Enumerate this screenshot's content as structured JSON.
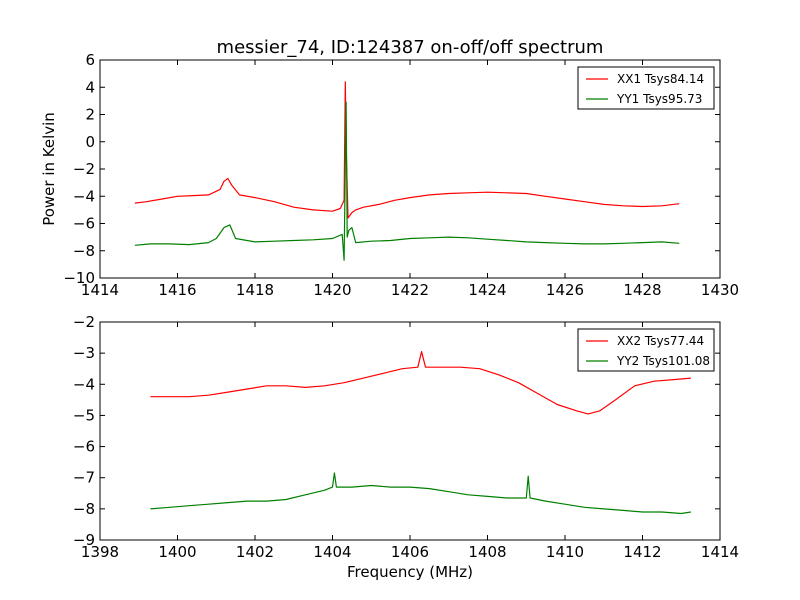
{
  "figure": {
    "title": "messier_74, ID:124387 on-off/off spectrum",
    "ylabel": "Power in Kelvin",
    "xlabel": "Frequency (MHz)"
  },
  "chart_data": [
    {
      "type": "line",
      "title": "messier_74, ID:124387 on-off/off spectrum",
      "xlabel": "",
      "ylabel": "Power in Kelvin",
      "xlim": [
        1414,
        1430
      ],
      "ylim": [
        -10,
        6
      ],
      "xticks": [
        1414,
        1416,
        1418,
        1420,
        1422,
        1424,
        1426,
        1428,
        1430
      ],
      "yticks": [
        6,
        4,
        2,
        0,
        -2,
        -4,
        -6,
        -8,
        -10
      ],
      "grid": false,
      "legend": "top-right",
      "series": [
        {
          "name": "XX1 Tsys84.14",
          "color": "#ff0000",
          "x": [
            1414.9,
            1415.2,
            1415.6,
            1416.0,
            1416.4,
            1416.8,
            1417.1,
            1417.2,
            1417.3,
            1417.4,
            1417.6,
            1418.0,
            1418.5,
            1419.0,
            1419.5,
            1420.0,
            1420.2,
            1420.3,
            1420.33,
            1420.36,
            1420.4,
            1420.5,
            1420.6,
            1420.8,
            1421.2,
            1421.6,
            1422.0,
            1422.5,
            1423.0,
            1423.5,
            1424.0,
            1424.5,
            1425.0,
            1425.5,
            1426.0,
            1426.5,
            1427.0,
            1427.5,
            1428.0,
            1428.5,
            1428.95
          ],
          "y": [
            -4.5,
            -4.4,
            -4.2,
            -4.0,
            -3.95,
            -3.9,
            -3.5,
            -2.9,
            -2.7,
            -3.2,
            -3.9,
            -4.1,
            -4.4,
            -4.8,
            -5.0,
            -5.1,
            -4.9,
            -4.3,
            4.4,
            -1.0,
            -5.6,
            -5.2,
            -5.0,
            -4.8,
            -4.6,
            -4.3,
            -4.1,
            -3.9,
            -3.8,
            -3.75,
            -3.7,
            -3.75,
            -3.8,
            -4.0,
            -4.2,
            -4.4,
            -4.6,
            -4.7,
            -4.75,
            -4.7,
            -4.55
          ]
        },
        {
          "name": "YY1 Tsys95.73",
          "color": "#008000",
          "x": [
            1414.9,
            1415.3,
            1415.8,
            1416.3,
            1416.8,
            1417.0,
            1417.2,
            1417.35,
            1417.5,
            1418.0,
            1418.5,
            1419.0,
            1419.5,
            1420.0,
            1420.25,
            1420.3,
            1420.35,
            1420.38,
            1420.42,
            1420.5,
            1420.6,
            1421.0,
            1421.5,
            1422.0,
            1422.5,
            1423.0,
            1423.5,
            1424.0,
            1424.5,
            1425.0,
            1425.5,
            1426.0,
            1426.5,
            1427.0,
            1427.5,
            1428.0,
            1428.5,
            1428.95
          ],
          "y": [
            -7.6,
            -7.5,
            -7.5,
            -7.55,
            -7.4,
            -7.1,
            -6.3,
            -6.1,
            -7.1,
            -7.35,
            -7.3,
            -7.25,
            -7.2,
            -7.1,
            -6.8,
            -8.7,
            2.9,
            -7.0,
            -6.5,
            -6.3,
            -7.4,
            -7.3,
            -7.25,
            -7.1,
            -7.05,
            -7.0,
            -7.05,
            -7.15,
            -7.25,
            -7.35,
            -7.4,
            -7.45,
            -7.5,
            -7.5,
            -7.45,
            -7.4,
            -7.35,
            -7.45
          ]
        }
      ]
    },
    {
      "type": "line",
      "title": "",
      "xlabel": "Frequency (MHz)",
      "ylabel": "",
      "xlim": [
        1398,
        1414
      ],
      "ylim": [
        -9,
        -2
      ],
      "xticks": [
        1398,
        1400,
        1402,
        1404,
        1406,
        1408,
        1410,
        1412,
        1414
      ],
      "yticks": [
        -2,
        -3,
        -4,
        -5,
        -6,
        -7,
        -8,
        -9
      ],
      "grid": false,
      "legend": "top-right",
      "series": [
        {
          "name": "XX2 Tsys77.44",
          "color": "#ff0000",
          "x": [
            1399.3,
            1399.8,
            1400.3,
            1400.8,
            1401.3,
            1401.8,
            1402.3,
            1402.8,
            1403.3,
            1403.8,
            1404.3,
            1404.8,
            1405.3,
            1405.8,
            1406.2,
            1406.3,
            1406.4,
            1406.8,
            1407.3,
            1407.8,
            1408.3,
            1408.8,
            1409.3,
            1409.8,
            1410.3,
            1410.6,
            1410.9,
            1411.3,
            1411.8,
            1412.3,
            1412.8,
            1413.25
          ],
          "y": [
            -4.4,
            -4.4,
            -4.4,
            -4.35,
            -4.25,
            -4.15,
            -4.05,
            -4.05,
            -4.1,
            -4.05,
            -3.95,
            -3.8,
            -3.65,
            -3.5,
            -3.45,
            -2.95,
            -3.45,
            -3.45,
            -3.45,
            -3.5,
            -3.7,
            -3.95,
            -4.3,
            -4.65,
            -4.85,
            -4.95,
            -4.85,
            -4.5,
            -4.05,
            -3.9,
            -3.85,
            -3.8
          ]
        },
        {
          "name": "YY2 Tsys101.08",
          "color": "#008000",
          "x": [
            1399.3,
            1399.8,
            1400.3,
            1400.8,
            1401.3,
            1401.8,
            1402.3,
            1402.8,
            1403.3,
            1403.8,
            1404.0,
            1404.05,
            1404.1,
            1404.5,
            1405.0,
            1405.5,
            1406.0,
            1406.5,
            1407.0,
            1407.5,
            1408.0,
            1408.5,
            1409.0,
            1409.05,
            1409.1,
            1409.5,
            1410.0,
            1410.5,
            1411.0,
            1411.5,
            1412.0,
            1412.5,
            1413.0,
            1413.25
          ],
          "y": [
            -8.0,
            -7.95,
            -7.9,
            -7.85,
            -7.8,
            -7.75,
            -7.75,
            -7.7,
            -7.55,
            -7.4,
            -7.3,
            -6.85,
            -7.3,
            -7.3,
            -7.25,
            -7.3,
            -7.3,
            -7.35,
            -7.45,
            -7.55,
            -7.6,
            -7.65,
            -7.65,
            -6.95,
            -7.65,
            -7.75,
            -7.85,
            -7.95,
            -8.0,
            -8.05,
            -8.1,
            -8.1,
            -8.15,
            -8.1
          ]
        }
      ]
    }
  ]
}
